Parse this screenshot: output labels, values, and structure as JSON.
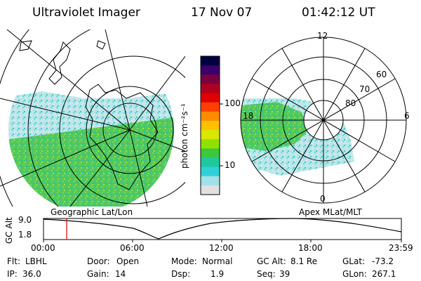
{
  "header": {
    "instrument": "Ultraviolet Imager",
    "date": "17 Nov 07",
    "time": "01:42:12 UT"
  },
  "colorbar": {
    "label": "photon cm⁻²s⁻¹",
    "ticks": [
      "100",
      "10"
    ],
    "colors": [
      "#000040",
      "#3b006b",
      "#7a0040",
      "#b00020",
      "#e00000",
      "#ff4000",
      "#ff8c00",
      "#ffc000",
      "#d8e800",
      "#90e000",
      "#3cc83c",
      "#20c8a0",
      "#30d0d8",
      "#a0e0e8",
      "#e0e0e0"
    ]
  },
  "panels": {
    "geo_caption": "Geographic Lat/Lon",
    "apex_caption": "Apex  MLat/MLT",
    "apex_labels": {
      "noon": "12",
      "midnight": "0",
      "dawn": "6",
      "dusk": "18",
      "lat60": "60",
      "lat70": "70",
      "lat80": "80"
    }
  },
  "altitude_plot": {
    "ylabel": "GC Alt",
    "yticks": [
      "9.0",
      "1.8"
    ],
    "xticks": [
      "00:00",
      "06:00",
      "12:00",
      "18:00",
      "23:59"
    ],
    "current_time_marker": "01:42"
  },
  "info": {
    "flt_label": "Flt:",
    "flt_value": "LBHL",
    "ip_label": "IP:",
    "ip_value": "36.0",
    "door_label": "Door:",
    "door_value": "Open",
    "gain_label": "Gain:",
    "gain_value": "14",
    "mode_label": "Mode:",
    "mode_value": "Normal",
    "dsp_label": "Dsp:",
    "dsp_value": "1.9",
    "gcalt_label": "GC Alt:",
    "gcalt_value": "8.1 Re",
    "seq_label": "Seq:",
    "seq_value": "39",
    "glat_label": "GLat:",
    "glat_value": "-73.2",
    "glon_label": "GLon:",
    "glon_value": "267.1"
  }
}
